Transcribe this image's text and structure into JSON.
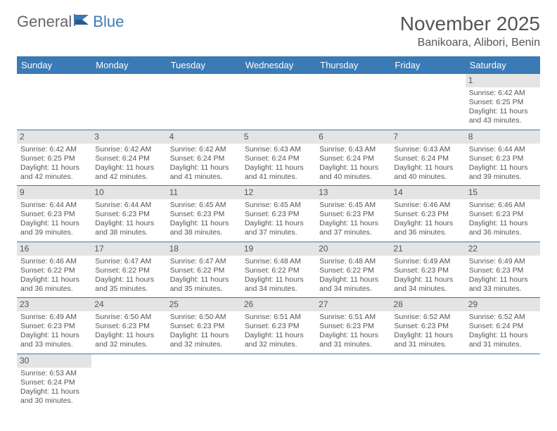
{
  "brand": {
    "part1": "General",
    "part2": "Blue"
  },
  "title": "November 2025",
  "location": "Banikoara, Alibori, Benin",
  "colors": {
    "header_bg": "#3a7ab5",
    "header_text": "#ffffff",
    "daynum_bg": "#e4e4e4",
    "border": "#3a7ab5",
    "text": "#555555",
    "background": "#ffffff"
  },
  "weekdays": [
    "Sunday",
    "Monday",
    "Tuesday",
    "Wednesday",
    "Thursday",
    "Friday",
    "Saturday"
  ],
  "weeks": [
    [
      {
        "empty": true
      },
      {
        "empty": true
      },
      {
        "empty": true
      },
      {
        "empty": true
      },
      {
        "empty": true
      },
      {
        "empty": true
      },
      {
        "day": "1",
        "sunrise": "Sunrise: 6:42 AM",
        "sunset": "Sunset: 6:25 PM",
        "daylight1": "Daylight: 11 hours",
        "daylight2": "and 43 minutes."
      }
    ],
    [
      {
        "day": "2",
        "sunrise": "Sunrise: 6:42 AM",
        "sunset": "Sunset: 6:25 PM",
        "daylight1": "Daylight: 11 hours",
        "daylight2": "and 42 minutes."
      },
      {
        "day": "3",
        "sunrise": "Sunrise: 6:42 AM",
        "sunset": "Sunset: 6:24 PM",
        "daylight1": "Daylight: 11 hours",
        "daylight2": "and 42 minutes."
      },
      {
        "day": "4",
        "sunrise": "Sunrise: 6:42 AM",
        "sunset": "Sunset: 6:24 PM",
        "daylight1": "Daylight: 11 hours",
        "daylight2": "and 41 minutes."
      },
      {
        "day": "5",
        "sunrise": "Sunrise: 6:43 AM",
        "sunset": "Sunset: 6:24 PM",
        "daylight1": "Daylight: 11 hours",
        "daylight2": "and 41 minutes."
      },
      {
        "day": "6",
        "sunrise": "Sunrise: 6:43 AM",
        "sunset": "Sunset: 6:24 PM",
        "daylight1": "Daylight: 11 hours",
        "daylight2": "and 40 minutes."
      },
      {
        "day": "7",
        "sunrise": "Sunrise: 6:43 AM",
        "sunset": "Sunset: 6:24 PM",
        "daylight1": "Daylight: 11 hours",
        "daylight2": "and 40 minutes."
      },
      {
        "day": "8",
        "sunrise": "Sunrise: 6:44 AM",
        "sunset": "Sunset: 6:23 PM",
        "daylight1": "Daylight: 11 hours",
        "daylight2": "and 39 minutes."
      }
    ],
    [
      {
        "day": "9",
        "sunrise": "Sunrise: 6:44 AM",
        "sunset": "Sunset: 6:23 PM",
        "daylight1": "Daylight: 11 hours",
        "daylight2": "and 39 minutes."
      },
      {
        "day": "10",
        "sunrise": "Sunrise: 6:44 AM",
        "sunset": "Sunset: 6:23 PM",
        "daylight1": "Daylight: 11 hours",
        "daylight2": "and 38 minutes."
      },
      {
        "day": "11",
        "sunrise": "Sunrise: 6:45 AM",
        "sunset": "Sunset: 6:23 PM",
        "daylight1": "Daylight: 11 hours",
        "daylight2": "and 38 minutes."
      },
      {
        "day": "12",
        "sunrise": "Sunrise: 6:45 AM",
        "sunset": "Sunset: 6:23 PM",
        "daylight1": "Daylight: 11 hours",
        "daylight2": "and 37 minutes."
      },
      {
        "day": "13",
        "sunrise": "Sunrise: 6:45 AM",
        "sunset": "Sunset: 6:23 PM",
        "daylight1": "Daylight: 11 hours",
        "daylight2": "and 37 minutes."
      },
      {
        "day": "14",
        "sunrise": "Sunrise: 6:46 AM",
        "sunset": "Sunset: 6:23 PM",
        "daylight1": "Daylight: 11 hours",
        "daylight2": "and 36 minutes."
      },
      {
        "day": "15",
        "sunrise": "Sunrise: 6:46 AM",
        "sunset": "Sunset: 6:23 PM",
        "daylight1": "Daylight: 11 hours",
        "daylight2": "and 36 minutes."
      }
    ],
    [
      {
        "day": "16",
        "sunrise": "Sunrise: 6:46 AM",
        "sunset": "Sunset: 6:22 PM",
        "daylight1": "Daylight: 11 hours",
        "daylight2": "and 36 minutes."
      },
      {
        "day": "17",
        "sunrise": "Sunrise: 6:47 AM",
        "sunset": "Sunset: 6:22 PM",
        "daylight1": "Daylight: 11 hours",
        "daylight2": "and 35 minutes."
      },
      {
        "day": "18",
        "sunrise": "Sunrise: 6:47 AM",
        "sunset": "Sunset: 6:22 PM",
        "daylight1": "Daylight: 11 hours",
        "daylight2": "and 35 minutes."
      },
      {
        "day": "19",
        "sunrise": "Sunrise: 6:48 AM",
        "sunset": "Sunset: 6:22 PM",
        "daylight1": "Daylight: 11 hours",
        "daylight2": "and 34 minutes."
      },
      {
        "day": "20",
        "sunrise": "Sunrise: 6:48 AM",
        "sunset": "Sunset: 6:22 PM",
        "daylight1": "Daylight: 11 hours",
        "daylight2": "and 34 minutes."
      },
      {
        "day": "21",
        "sunrise": "Sunrise: 6:49 AM",
        "sunset": "Sunset: 6:23 PM",
        "daylight1": "Daylight: 11 hours",
        "daylight2": "and 34 minutes."
      },
      {
        "day": "22",
        "sunrise": "Sunrise: 6:49 AM",
        "sunset": "Sunset: 6:23 PM",
        "daylight1": "Daylight: 11 hours",
        "daylight2": "and 33 minutes."
      }
    ],
    [
      {
        "day": "23",
        "sunrise": "Sunrise: 6:49 AM",
        "sunset": "Sunset: 6:23 PM",
        "daylight1": "Daylight: 11 hours",
        "daylight2": "and 33 minutes."
      },
      {
        "day": "24",
        "sunrise": "Sunrise: 6:50 AM",
        "sunset": "Sunset: 6:23 PM",
        "daylight1": "Daylight: 11 hours",
        "daylight2": "and 32 minutes."
      },
      {
        "day": "25",
        "sunrise": "Sunrise: 6:50 AM",
        "sunset": "Sunset: 6:23 PM",
        "daylight1": "Daylight: 11 hours",
        "daylight2": "and 32 minutes."
      },
      {
        "day": "26",
        "sunrise": "Sunrise: 6:51 AM",
        "sunset": "Sunset: 6:23 PM",
        "daylight1": "Daylight: 11 hours",
        "daylight2": "and 32 minutes."
      },
      {
        "day": "27",
        "sunrise": "Sunrise: 6:51 AM",
        "sunset": "Sunset: 6:23 PM",
        "daylight1": "Daylight: 11 hours",
        "daylight2": "and 31 minutes."
      },
      {
        "day": "28",
        "sunrise": "Sunrise: 6:52 AM",
        "sunset": "Sunset: 6:23 PM",
        "daylight1": "Daylight: 11 hours",
        "daylight2": "and 31 minutes."
      },
      {
        "day": "29",
        "sunrise": "Sunrise: 6:52 AM",
        "sunset": "Sunset: 6:24 PM",
        "daylight1": "Daylight: 11 hours",
        "daylight2": "and 31 minutes."
      }
    ],
    [
      {
        "day": "30",
        "sunrise": "Sunrise: 6:53 AM",
        "sunset": "Sunset: 6:24 PM",
        "daylight1": "Daylight: 11 hours",
        "daylight2": "and 30 minutes."
      },
      {
        "empty": true
      },
      {
        "empty": true
      },
      {
        "empty": true
      },
      {
        "empty": true
      },
      {
        "empty": true
      },
      {
        "empty": true
      }
    ]
  ]
}
